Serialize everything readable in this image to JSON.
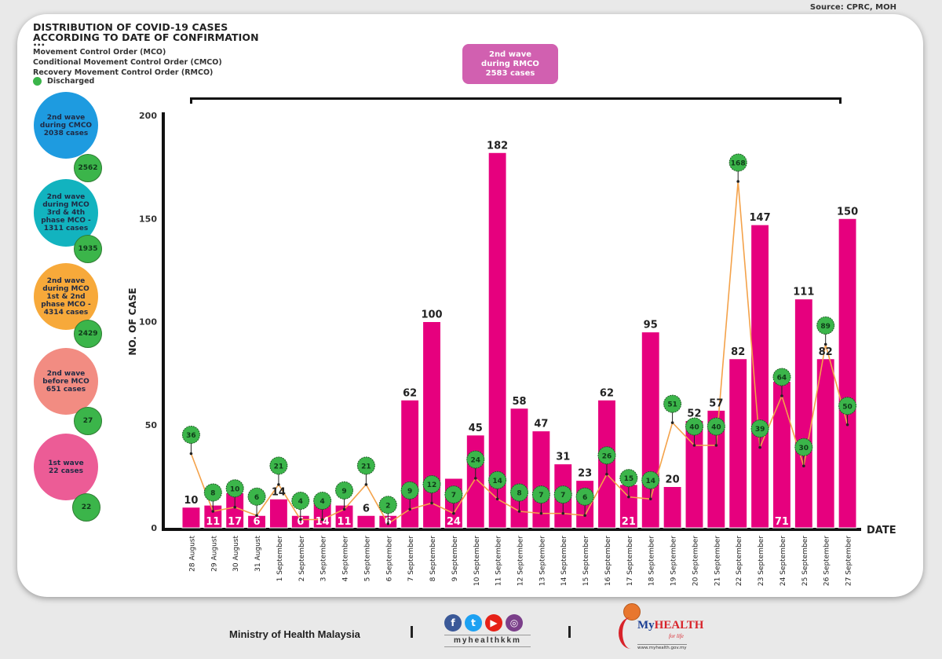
{
  "source": "Source: CPRC, MOH",
  "title_lines": [
    "DISTRIBUTION OF COVID-19 CASES",
    "ACCORDING TO DATE OF CONFIRMATION"
  ],
  "dots": "•••",
  "legend_lines": [
    "Movement Control Order (MCO)",
    "Conditional Movement Control Order (CMCO)",
    "Recovery Movement Control Order (RMCO)"
  ],
  "legend_discharged": "Discharged",
  "waves": [
    {
      "label": "2nd wave\nduring CMCO\n2038 cases",
      "discharged": "2562",
      "color": "#1e9be0"
    },
    {
      "label": "2nd wave\nduring MCO\n3rd & 4th\nphase MCO -\n1311 cases",
      "discharged": "1935",
      "color": "#12b3bf"
    },
    {
      "label": "2nd wave\nduring MCO\n1st & 2nd\nphase MCO -\n4314 cases",
      "discharged": "2429",
      "color": "#f7a93a"
    },
    {
      "label": "2nd wave\nbefore MCO\n651 cases",
      "discharged": "27",
      "color": "#f28c82"
    },
    {
      "label": "1st wave\n22 cases",
      "discharged": "22",
      "color": "#ec5c96"
    }
  ],
  "rmco_box": "2nd wave\nduring RMCO\n2583 cases",
  "colors": {
    "bar": "#e6007e",
    "discharged": "#3bb54a",
    "line": "#f4a24a",
    "axis": "#111111"
  },
  "chart_data": {
    "type": "bar",
    "title": "DISTRIBUTION OF COVID-19 CASES ACCORDING TO DATE OF CONFIRMATION",
    "xlabel": "DATE",
    "ylabel": "NO. OF CASE",
    "ylim": [
      0,
      200
    ],
    "yticks": [
      0,
      50,
      100,
      150,
      200
    ],
    "grid": false,
    "legend": "top-left",
    "categories": [
      "28 August",
      "29 August",
      "30 August",
      "31 August",
      "1 September",
      "2 September",
      "3 September",
      "4 September",
      "5 September",
      "6 September",
      "7 September",
      "8 September",
      "9 September",
      "10 September",
      "11 September",
      "12 September",
      "13 September",
      "14 September",
      "15 September",
      "16 September",
      "17 September",
      "18 September",
      "19 September",
      "20 September",
      "21 September",
      "22 September",
      "23 September",
      "24 September",
      "25 September",
      "26 September",
      "27 September"
    ],
    "series": [
      {
        "name": "New cases",
        "type": "bar",
        "values": [
          10,
          11,
          17,
          6,
          14,
          6,
          14,
          11,
          6,
          6,
          62,
          100,
          24,
          45,
          182,
          58,
          47,
          31,
          23,
          62,
          21,
          95,
          20,
          52,
          57,
          82,
          147,
          71,
          111,
          82,
          150
        ]
      },
      {
        "name": "Discharged",
        "type": "line",
        "values": [
          36,
          8,
          10,
          6,
          21,
          4,
          4,
          9,
          21,
          2,
          9,
          12,
          7,
          24,
          14,
          8,
          7,
          7,
          6,
          26,
          15,
          14,
          51,
          40,
          40,
          168,
          39,
          64,
          30,
          89,
          50
        ]
      }
    ],
    "annotations": [
      "2nd wave during RMCO 2583 cases"
    ]
  },
  "footer": {
    "ministry": "Ministry of Health Malaysia",
    "social_icons": [
      "facebook-icon",
      "twitter-icon",
      "youtube-icon",
      "instagram-icon"
    ],
    "handle": "myhealthkkm",
    "brand_my": "My",
    "brand_health": "HEALTH",
    "brand_tagline": "for life",
    "brand_url": "www.myhealth.gov.my"
  }
}
